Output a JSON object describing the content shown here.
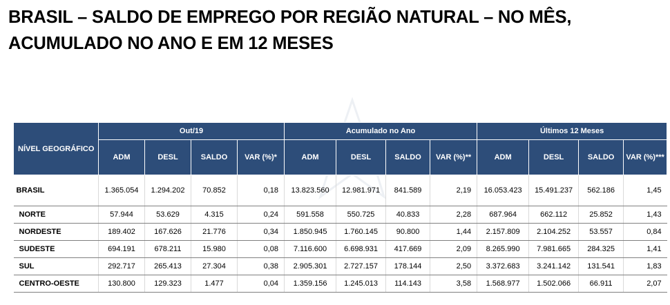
{
  "title": {
    "line1": "BRASIL – SALDO DE EMPREGO POR REGIÃO NATURAL – NO MÊS,",
    "line2": "ACUMULADO NO ANO E EM 12 MESES"
  },
  "table": {
    "geo_header": "NÍVEL GEOGRÁFICO",
    "groups": [
      "Out/19",
      "Acumulado no Ano",
      "Últimos 12 Meses"
    ],
    "subheaders": [
      "ADM",
      "DESL",
      "SALDO",
      "VAR (%)*",
      "ADM",
      "DESL",
      "SALDO",
      "VAR (%)**",
      "ADM",
      "DESL",
      "SALDO",
      "VAR (%)***"
    ],
    "rows": [
      {
        "name": "BRASIL",
        "values": [
          "1.365.054",
          "1.294.202",
          "70.852",
          "0,18",
          "13.823.560",
          "12.981.971",
          "841.589",
          "2,19",
          "16.053.423",
          "15.491.237",
          "562.186",
          "1,45"
        ]
      },
      {
        "name": "NORTE",
        "values": [
          "57.944",
          "53.629",
          "4.315",
          "0,24",
          "591.558",
          "550.725",
          "40.833",
          "2,28",
          "687.964",
          "662.112",
          "25.852",
          "1,43"
        ]
      },
      {
        "name": "NORDESTE",
        "values": [
          "189.402",
          "167.626",
          "21.776",
          "0,34",
          "1.850.945",
          "1.760.145",
          "90.800",
          "1,44",
          "2.157.809",
          "2.104.252",
          "53.557",
          "0,84"
        ]
      },
      {
        "name": "SUDESTE",
        "values": [
          "694.191",
          "678.211",
          "15.980",
          "0,08",
          "7.116.600",
          "6.698.931",
          "417.669",
          "2,09",
          "8.265.990",
          "7.981.665",
          "284.325",
          "1,41"
        ]
      },
      {
        "name": "SUL",
        "values": [
          "292.717",
          "265.413",
          "27.304",
          "0,38",
          "2.905.301",
          "2.727.157",
          "178.144",
          "2,50",
          "3.372.683",
          "3.241.142",
          "131.541",
          "1,83"
        ]
      },
      {
        "name": "CENTRO-OESTE",
        "values": [
          "130.800",
          "129.323",
          "1.477",
          "0,04",
          "1.359.156",
          "1.245.013",
          "114.143",
          "3,58",
          "1.568.977",
          "1.502.066",
          "66.911",
          "2,07"
        ]
      }
    ]
  },
  "colors": {
    "header_bg": "#2d4d79",
    "header_text": "#ffffff"
  }
}
